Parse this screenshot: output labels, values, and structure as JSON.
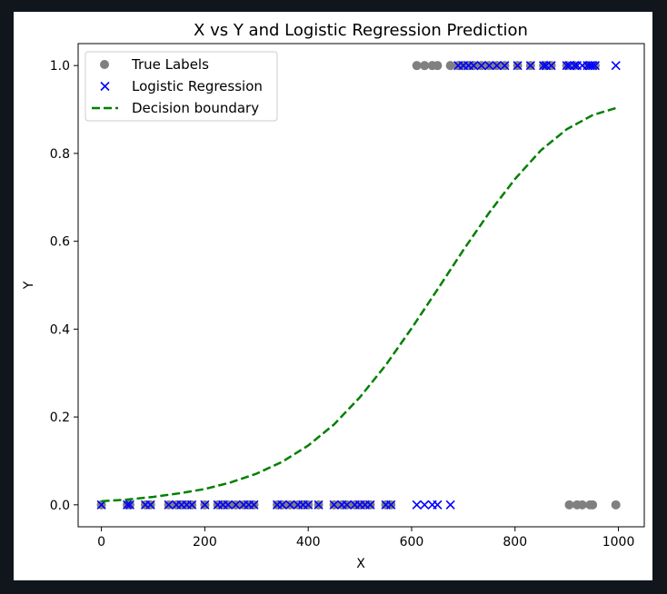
{
  "chart_data": {
    "type": "scatter",
    "title": "X vs Y and Logistic Regression Prediction",
    "xlabel": "X",
    "ylabel": "Y",
    "xlim": [
      -45,
      1050
    ],
    "ylim": [
      -0.05,
      1.05
    ],
    "xticks": [
      0,
      200,
      400,
      600,
      800,
      1000
    ],
    "yticks": [
      0.0,
      0.2,
      0.4,
      0.6,
      0.8,
      1.0
    ],
    "xtick_labels": [
      "0",
      "200",
      "400",
      "600",
      "800",
      "1000"
    ],
    "ytick_labels": [
      "0.0",
      "0.2",
      "0.4",
      "0.6",
      "0.8",
      "1.0"
    ],
    "grid": false,
    "legend_position": "top-left",
    "series": [
      {
        "name": "True Labels",
        "kind": "scatter-circle",
        "color": "#808080",
        "x": [
          0,
          50,
          55,
          85,
          95,
          130,
          145,
          155,
          165,
          175,
          200,
          225,
          235,
          245,
          260,
          275,
          285,
          295,
          340,
          350,
          365,
          380,
          390,
          400,
          420,
          450,
          465,
          475,
          490,
          500,
          510,
          520,
          550,
          560,
          610,
          625,
          640,
          650,
          675,
          690,
          700,
          710,
          720,
          735,
          750,
          765,
          780,
          805,
          830,
          855,
          860,
          870,
          900,
          905,
          915,
          920,
          930,
          940,
          945,
          950,
          955,
          995
        ],
        "y": [
          0,
          0,
          0,
          0,
          0,
          0,
          0,
          0,
          0,
          0,
          0,
          0,
          0,
          0,
          0,
          0,
          0,
          0,
          0,
          0,
          0,
          0,
          0,
          0,
          0,
          0,
          0,
          0,
          0,
          0,
          0,
          0,
          0,
          0,
          1,
          1,
          1,
          1,
          1,
          1,
          1,
          1,
          1,
          1,
          1,
          1,
          1,
          1,
          1,
          1,
          1,
          1,
          1,
          0,
          1,
          0,
          0,
          1,
          0,
          0,
          1,
          0
        ]
      },
      {
        "name": "Logistic Regression",
        "kind": "scatter-x",
        "color": "#0000ff",
        "x": [
          0,
          50,
          55,
          85,
          95,
          130,
          145,
          155,
          165,
          175,
          200,
          225,
          235,
          245,
          260,
          275,
          285,
          295,
          340,
          350,
          365,
          380,
          390,
          400,
          420,
          450,
          465,
          475,
          490,
          500,
          510,
          520,
          550,
          560,
          610,
          625,
          640,
          650,
          675,
          690,
          700,
          710,
          720,
          735,
          750,
          765,
          780,
          805,
          830,
          855,
          860,
          870,
          900,
          905,
          915,
          920,
          930,
          940,
          945,
          950,
          955,
          995
        ],
        "y": [
          0,
          0,
          0,
          0,
          0,
          0,
          0,
          0,
          0,
          0,
          0,
          0,
          0,
          0,
          0,
          0,
          0,
          0,
          0,
          0,
          0,
          0,
          0,
          0,
          0,
          0,
          0,
          0,
          0,
          0,
          0,
          0,
          0,
          0,
          0,
          0,
          0,
          0,
          0,
          1,
          1,
          1,
          1,
          1,
          1,
          1,
          1,
          1,
          1,
          1,
          1,
          1,
          1,
          1,
          1,
          1,
          1,
          1,
          1,
          1,
          1,
          1
        ]
      },
      {
        "name": "Decision boundary",
        "kind": "line-dashed",
        "color": "#008000",
        "x": [
          0,
          50,
          100,
          150,
          200,
          250,
          300,
          350,
          400,
          450,
          500,
          550,
          600,
          650,
          700,
          750,
          800,
          850,
          900,
          950,
          1000
        ],
        "y": [
          0.008,
          0.012,
          0.018,
          0.026,
          0.036,
          0.051,
          0.071,
          0.098,
          0.135,
          0.183,
          0.245,
          0.318,
          0.402,
          0.49,
          0.58,
          0.665,
          0.742,
          0.807,
          0.855,
          0.887,
          0.905
        ]
      }
    ]
  }
}
